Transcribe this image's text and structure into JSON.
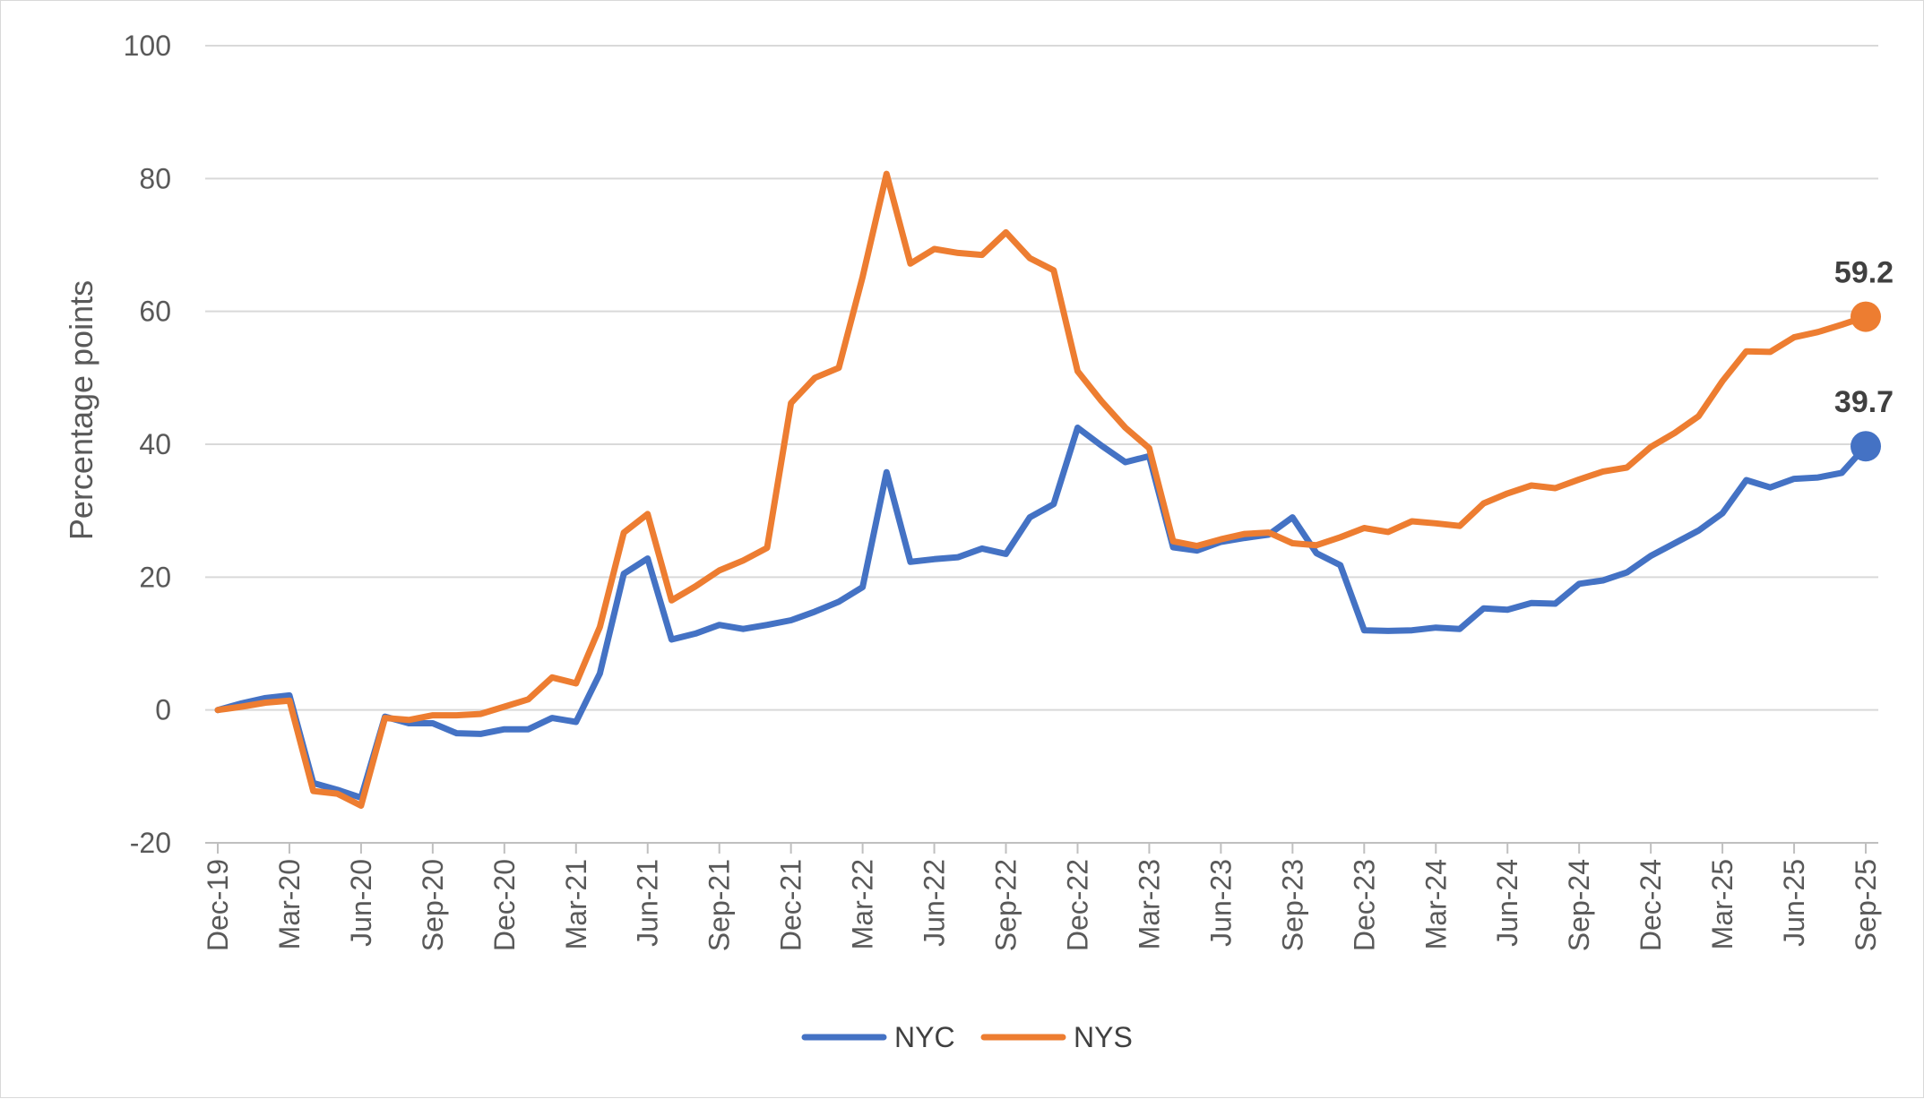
{
  "chart_data": {
    "type": "line",
    "title": "",
    "xlabel": "",
    "ylabel": "Percentage points",
    "ylim": [
      -20,
      100
    ],
    "yticks": [
      -20,
      0,
      20,
      40,
      60,
      80,
      100
    ],
    "grid": "horizontal",
    "legend_position": "bottom",
    "x": [
      "Dec-19",
      "Jan-20",
      "Feb-20",
      "Mar-20",
      "Apr-20",
      "May-20",
      "Jun-20",
      "Jul-20",
      "Aug-20",
      "Sep-20",
      "Oct-20",
      "Nov-20",
      "Dec-20",
      "Jan-21",
      "Feb-21",
      "Mar-21",
      "Apr-21",
      "May-21",
      "Jun-21",
      "Jul-21",
      "Aug-21",
      "Sep-21",
      "Oct-21",
      "Nov-21",
      "Dec-21",
      "Jan-22",
      "Feb-22",
      "Mar-22",
      "Apr-22",
      "May-22",
      "Jun-22",
      "Jul-22",
      "Aug-22",
      "Sep-22",
      "Oct-22",
      "Nov-22",
      "Dec-22",
      "Jan-23",
      "Feb-23",
      "Mar-23",
      "Apr-23",
      "May-23",
      "Jun-23",
      "Jul-23",
      "Aug-23",
      "Sep-23",
      "Oct-23",
      "Nov-23",
      "Dec-23",
      "Jan-24",
      "Feb-24",
      "Mar-24",
      "Apr-24",
      "May-24",
      "Jun-24",
      "Jul-24",
      "Aug-24",
      "Sep-24",
      "Oct-24",
      "Nov-24",
      "Dec-24",
      "Jan-25",
      "Feb-25",
      "Mar-25",
      "Apr-25",
      "May-25",
      "Jun-25",
      "Jul-25",
      "Aug-25",
      "Sep-25"
    ],
    "x_tick_labels": [
      "Dec-19",
      "Mar-20",
      "Jun-20",
      "Sep-20",
      "Dec-20",
      "Mar-21",
      "Jun-21",
      "Sep-21",
      "Dec-21",
      "Mar-22",
      "Jun-22",
      "Sep-22",
      "Dec-22",
      "Mar-23",
      "Jun-23",
      "Sep-23",
      "Dec-23",
      "Mar-24",
      "Jun-24",
      "Sep-24",
      "Dec-24",
      "Mar-25",
      "Jun-25",
      "Sep-25"
    ],
    "series": [
      {
        "name": "NYC",
        "color": "#4472c4",
        "values": [
          0,
          1,
          1.8,
          2.2,
          -11,
          -12,
          -13.2,
          -1,
          -2,
          -2,
          -3.5,
          -3.6,
          -2.9,
          -2.9,
          -1.2,
          -1.8,
          5.5,
          20.5,
          22.8,
          10.6,
          11.5,
          12.8,
          12.2,
          12.8,
          13.5,
          14.8,
          16.3,
          18.5,
          35.8,
          22.3,
          22.7,
          23,
          24.3,
          23.5,
          29,
          31,
          42.5,
          39.8,
          37.3,
          38.2,
          24.5,
          24,
          25.3,
          25.9,
          26.4,
          29,
          23.6,
          21.8,
          12,
          11.9,
          12,
          12.4,
          12.2,
          15.3,
          15.1,
          16.1,
          16,
          19,
          19.5,
          20.7,
          23.2,
          25.1,
          27,
          29.6,
          34.6,
          33.5,
          34.8,
          35,
          35.7,
          39.7
        ]
      },
      {
        "name": "NYS",
        "color": "#ed7d31",
        "values": [
          0,
          0.5,
          1.1,
          1.4,
          -12.2,
          -12.6,
          -14.4,
          -1.2,
          -1.5,
          -0.8,
          -0.8,
          -0.6,
          0.5,
          1.6,
          4.9,
          4,
          12.5,
          26.7,
          29.5,
          16.5,
          18.6,
          21,
          22.5,
          24.4,
          46.2,
          50,
          51.5,
          65.2,
          80.7,
          67.2,
          69.4,
          68.8,
          68.5,
          71.9,
          68,
          66.2,
          51,
          46.5,
          42.5,
          39.4,
          25.4,
          24.7,
          25.7,
          26.5,
          26.7,
          25.1,
          24.8,
          26,
          27.4,
          26.8,
          28.4,
          28.1,
          27.7,
          31.1,
          32.6,
          33.8,
          33.4,
          34.7,
          35.9,
          36.5,
          39.6,
          41.7,
          44.2,
          49.5,
          54,
          53.9,
          56.1,
          56.9,
          58,
          59.2
        ]
      }
    ],
    "end_labels": [
      "59.2",
      "39.7"
    ]
  }
}
